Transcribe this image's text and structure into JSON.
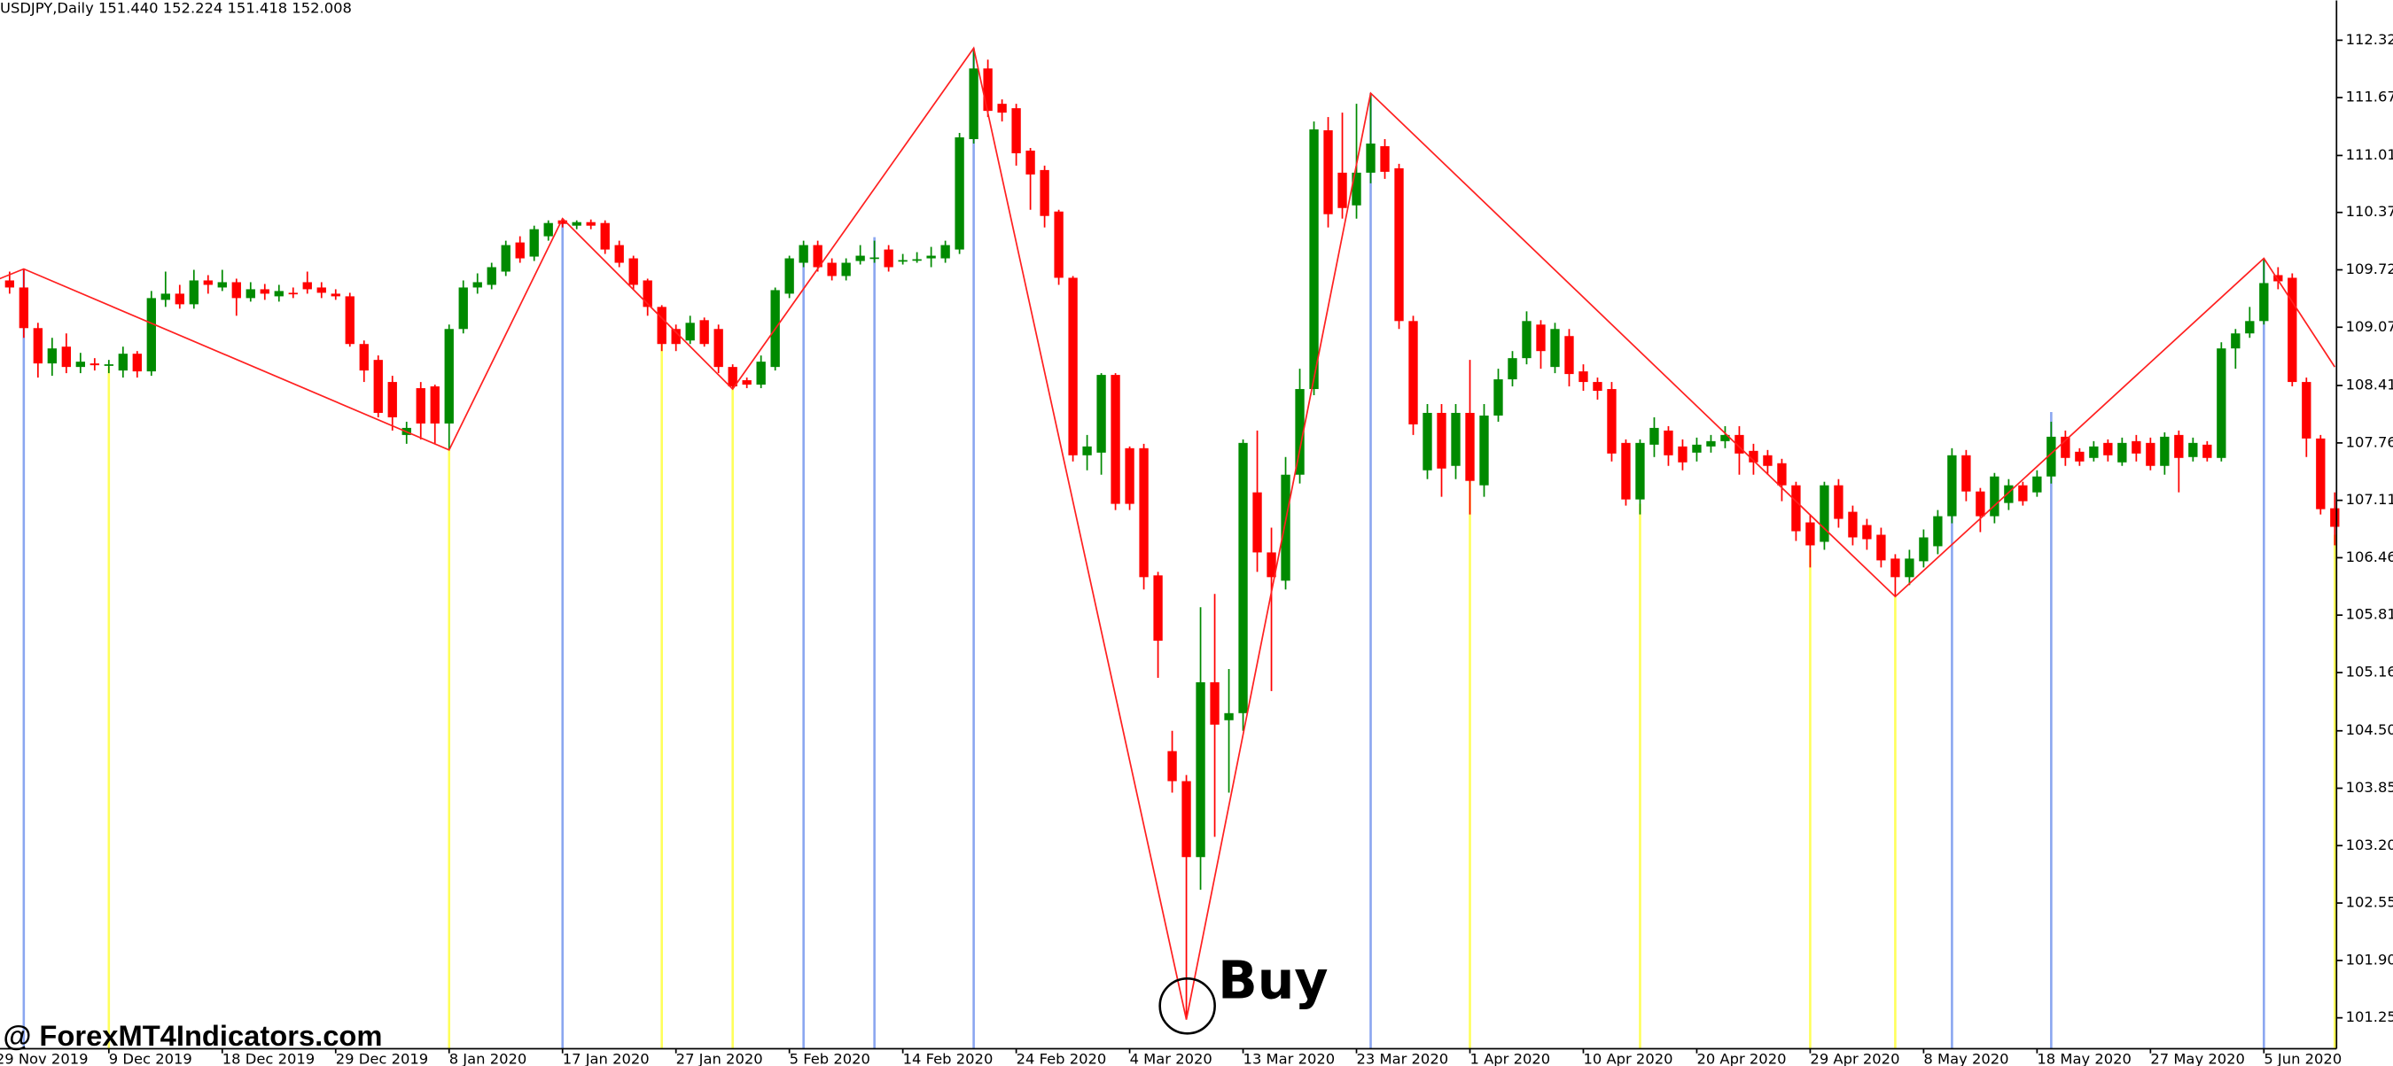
{
  "chart_data": {
    "type": "candlestick",
    "title": "USDJPY,Daily  151.440 152.224 151.418 152.008",
    "categories": [
      "29 Nov 2019",
      null,
      null,
      null,
      null,
      null,
      null,
      null,
      "9 Dec 2019",
      null,
      null,
      null,
      null,
      null,
      null,
      null,
      "18 Dec 2019",
      null,
      null,
      null,
      null,
      null,
      null,
      null,
      "29 Dec 2019",
      null,
      null,
      null,
      null,
      null,
      null,
      null,
      "8 Jan 2020",
      null,
      null,
      null,
      null,
      null,
      null,
      null,
      "17 Jan 2020",
      null,
      null,
      null,
      null,
      null,
      null,
      null,
      "27 Jan 2020",
      null,
      null,
      null,
      null,
      null,
      null,
      null,
      "5 Feb 2020",
      null,
      null,
      null,
      null,
      null,
      null,
      null,
      "14 Feb 2020",
      null,
      null,
      null,
      null,
      null,
      null,
      null,
      "24 Feb 2020",
      null,
      null,
      null,
      null,
      null,
      null,
      null,
      "4 Mar 2020",
      null,
      null,
      null,
      null,
      null,
      null,
      null,
      "13 Mar 2020",
      null,
      null,
      null,
      null,
      null,
      null,
      null,
      "23 Mar 2020",
      null,
      null,
      null,
      null,
      null,
      null,
      null,
      "1 Apr 2020",
      null,
      null,
      null,
      null,
      null,
      null,
      null,
      "10 Apr 2020",
      null,
      null,
      null,
      null,
      null,
      null,
      null,
      "20 Apr 2020",
      null,
      null,
      null,
      null,
      null,
      null,
      null,
      "29 Apr 2020",
      null,
      null,
      null,
      null,
      null,
      null,
      null,
      "8 May 2020",
      null,
      null,
      null,
      null,
      null,
      null,
      null,
      "18 May 2020",
      null,
      null,
      null,
      null,
      null,
      null,
      null,
      "27 May 2020",
      null,
      null,
      null,
      null,
      null,
      null,
      null,
      "5 Jun 2020",
      null,
      null,
      null,
      null,
      null
    ],
    "open": [
      109.55,
      109.6,
      109.52,
      109.06,
      108.66,
      108.85,
      108.62,
      108.66,
      108.64,
      108.58,
      108.77,
      108.57,
      109.38,
      109.45,
      109.33,
      109.6,
      109.52,
      109.58,
      109.4,
      109.5,
      109.42,
      109.46,
      109.58,
      109.52,
      109.45,
      109.42,
      108.88,
      108.7,
      108.45,
      107.85,
      108.38,
      108.4,
      107.98,
      109.05,
      109.52,
      109.55,
      109.7,
      110.03,
      109.87,
      110.1,
      110.28,
      110.22,
      110.26,
      110.25,
      110.0,
      109.85,
      109.6,
      109.3,
      109.05,
      108.92,
      109.15,
      109.05,
      108.62,
      108.47,
      108.42,
      108.62,
      109.45,
      109.8,
      110.0,
      109.8,
      109.65,
      109.82,
      109.85,
      109.95,
      109.82,
      109.83,
      109.85,
      109.85,
      109.95,
      111.2,
      112.0,
      111.6,
      111.55,
      111.07,
      110.85,
      110.38,
      109.63,
      107.62,
      107.65,
      108.53,
      107.7,
      107.7,
      106.26,
      104.27,
      103.93,
      103.07,
      105.05,
      104.62,
      104.7,
      107.2,
      106.52,
      106.2,
      107.4,
      108.37,
      111.3,
      110.82,
      110.45,
      110.82,
      111.12,
      110.87,
      109.14,
      107.45,
      108.1,
      107.5,
      108.1,
      107.28,
      108.07,
      108.48,
      108.72,
      109.1,
      108.62,
      108.97,
      108.57,
      108.45,
      108.37,
      107.76,
      107.12,
      107.74,
      107.9,
      107.72,
      107.65,
      107.72,
      107.78,
      107.85,
      107.67,
      107.62,
      107.53,
      107.28,
      106.86,
      106.64,
      107.28,
      106.98,
      106.83,
      106.72,
      106.45,
      106.24,
      106.42,
      106.59,
      106.93,
      107.62,
      107.21,
      106.93,
      107.08,
      107.28,
      107.2,
      107.38,
      107.83,
      107.66,
      107.59,
      107.76,
      107.54,
      107.78,
      107.76,
      107.5,
      107.85,
      107.6,
      107.74,
      107.59,
      108.83,
      109.0,
      109.14,
      109.66,
      109.63,
      108.45,
      107.81,
      107.02
    ],
    "high": [
      109.65,
      109.7,
      109.73,
      109.12,
      108.95,
      109.0,
      108.78,
      108.72,
      108.7,
      108.85,
      108.8,
      109.48,
      109.7,
      109.55,
      109.72,
      109.66,
      109.72,
      109.62,
      109.58,
      109.56,
      109.55,
      109.52,
      109.7,
      109.58,
      109.5,
      109.46,
      108.92,
      108.75,
      108.52,
      108.0,
      108.45,
      108.42,
      109.1,
      109.6,
      109.68,
      109.8,
      110.05,
      110.1,
      110.22,
      110.28,
      110.3,
      110.28,
      110.29,
      110.28,
      110.05,
      109.88,
      109.62,
      109.32,
      109.1,
      109.2,
      109.18,
      109.1,
      108.65,
      108.5,
      108.75,
      109.52,
      109.88,
      110.05,
      110.05,
      109.85,
      109.85,
      110.0,
      110.05,
      110.0,
      109.9,
      109.92,
      109.98,
      110.05,
      111.27,
      112.23,
      112.1,
      111.65,
      111.6,
      111.1,
      110.9,
      110.4,
      109.65,
      107.85,
      108.55,
      108.55,
      107.72,
      107.75,
      106.3,
      104.5,
      104.0,
      105.9,
      106.05,
      105.2,
      107.8,
      107.9,
      106.8,
      107.6,
      108.6,
      111.4,
      111.45,
      111.5,
      111.6,
      111.72,
      111.2,
      110.92,
      109.2,
      108.2,
      108.2,
      108.2,
      108.7,
      108.2,
      108.6,
      108.8,
      109.25,
      109.15,
      109.12,
      109.05,
      108.65,
      108.5,
      108.45,
      107.8,
      107.8,
      108.05,
      107.95,
      107.8,
      107.82,
      107.85,
      107.95,
      107.95,
      107.75,
      107.68,
      107.58,
      107.32,
      106.95,
      107.32,
      107.35,
      107.05,
      106.9,
      106.8,
      106.5,
      106.55,
      106.78,
      107.0,
      107.7,
      107.68,
      107.25,
      107.42,
      107.35,
      107.32,
      107.45,
      108.0,
      107.9,
      107.7,
      107.78,
      107.8,
      107.82,
      107.85,
      107.82,
      107.88,
      107.9,
      107.82,
      107.78,
      108.9,
      109.05,
      109.3,
      109.85,
      109.75,
      109.68,
      108.5,
      107.85,
      107.2
    ],
    "low": [
      109.45,
      109.45,
      108.95,
      108.5,
      108.52,
      108.55,
      108.55,
      108.58,
      108.55,
      108.5,
      108.5,
      108.52,
      109.3,
      109.28,
      109.28,
      109.45,
      109.48,
      109.2,
      109.36,
      109.38,
      109.36,
      109.4,
      109.45,
      109.4,
      109.38,
      108.85,
      108.45,
      108.05,
      107.9,
      107.75,
      107.8,
      107.75,
      107.68,
      109.0,
      109.45,
      109.5,
      109.65,
      109.8,
      109.82,
      110.05,
      110.2,
      110.18,
      110.18,
      109.9,
      109.75,
      109.5,
      109.2,
      108.8,
      108.8,
      108.88,
      108.85,
      108.55,
      108.37,
      108.38,
      108.38,
      108.58,
      109.4,
      109.75,
      109.7,
      109.6,
      109.6,
      109.78,
      109.8,
      109.7,
      109.78,
      109.8,
      109.75,
      109.8,
      109.9,
      111.15,
      111.45,
      111.4,
      110.9,
      110.4,
      110.2,
      109.55,
      107.55,
      107.45,
      107.4,
      107.0,
      107.0,
      106.1,
      105.1,
      103.8,
      101.23,
      102.7,
      103.3,
      103.8,
      104.5,
      106.3,
      104.95,
      106.1,
      107.3,
      108.3,
      110.2,
      110.3,
      110.3,
      110.7,
      110.75,
      109.05,
      107.85,
      107.35,
      107.15,
      107.35,
      106.95,
      107.15,
      108.0,
      108.4,
      108.65,
      108.6,
      108.55,
      108.4,
      108.35,
      108.25,
      107.55,
      107.05,
      106.95,
      107.6,
      107.5,
      107.45,
      107.55,
      107.65,
      107.7,
      107.4,
      107.4,
      107.4,
      107.1,
      106.65,
      106.35,
      106.55,
      106.8,
      106.6,
      106.55,
      106.35,
      106.02,
      106.15,
      106.35,
      106.5,
      106.85,
      107.1,
      106.75,
      106.85,
      107.0,
      107.05,
      107.15,
      107.3,
      107.5,
      107.5,
      107.55,
      107.55,
      107.5,
      107.55,
      107.45,
      107.4,
      107.2,
      107.55,
      107.55,
      107.55,
      108.6,
      108.95,
      109.1,
      109.5,
      108.4,
      107.6,
      106.95,
      106.6
    ],
    "close": [
      109.6,
      109.52,
      109.06,
      108.66,
      108.83,
      108.62,
      108.68,
      108.64,
      108.65,
      108.77,
      108.57,
      109.4,
      109.45,
      109.33,
      109.6,
      109.55,
      109.58,
      109.4,
      109.5,
      109.45,
      109.48,
      109.45,
      109.5,
      109.46,
      109.42,
      108.88,
      108.58,
      108.1,
      108.05,
      107.93,
      107.98,
      107.98,
      109.05,
      109.52,
      109.58,
      109.75,
      110.0,
      109.85,
      110.18,
      110.25,
      110.24,
      110.26,
      110.22,
      109.95,
      109.8,
      109.55,
      109.3,
      108.88,
      108.88,
      109.12,
      108.88,
      108.62,
      108.4,
      108.42,
      108.68,
      109.49,
      109.85,
      110.0,
      109.75,
      109.65,
      109.8,
      109.88,
      109.86,
      109.75,
      109.83,
      109.84,
      109.88,
      110.0,
      111.22,
      112.0,
      111.52,
      111.5,
      111.04,
      110.8,
      110.33,
      109.63,
      107.62,
      107.72,
      108.53,
      107.07,
      107.07,
      106.24,
      105.52,
      103.93,
      103.07,
      105.05,
      104.57,
      104.7,
      107.76,
      106.52,
      106.24,
      107.4,
      108.37,
      111.31,
      110.35,
      110.42,
      110.82,
      111.15,
      110.83,
      109.14,
      107.97,
      108.1,
      107.47,
      108.1,
      107.33,
      108.07,
      108.48,
      108.72,
      109.14,
      108.8,
      109.05,
      108.54,
      108.45,
      108.35,
      107.64,
      107.12,
      107.76,
      107.93,
      107.62,
      107.54,
      107.74,
      107.78,
      107.85,
      107.64,
      107.54,
      107.5,
      107.28,
      106.76,
      106.6,
      107.28,
      106.9,
      106.69,
      106.67,
      106.43,
      106.24,
      106.45,
      106.69,
      106.93,
      107.62,
      107.21,
      106.93,
      107.38,
      107.28,
      107.1,
      107.38,
      107.83,
      107.59,
      107.55,
      107.72,
      107.62,
      107.76,
      107.64,
      107.5,
      107.83,
      107.59,
      107.76,
      107.59,
      108.83,
      109.0,
      109.14,
      109.57,
      109.59,
      108.45,
      107.81,
      107.01,
      106.81
    ],
    "up_color": "#008a00",
    "down_color": "#ff0000",
    "ylim": [
      100.9,
      112.77
    ],
    "yticks": [
      {
        "value": 112.32,
        "label": "112.320"
      },
      {
        "value": 111.67,
        "label": "111.670"
      },
      {
        "value": 111.015,
        "label": "111.015"
      },
      {
        "value": 110.37,
        "label": "110.370"
      },
      {
        "value": 109.72,
        "label": "109.720"
      },
      {
        "value": 109.07,
        "label": "109.070"
      },
      {
        "value": 108.41,
        "label": "108.410"
      },
      {
        "value": 107.76,
        "label": "107.760"
      },
      {
        "value": 107.11,
        "label": "107.110"
      },
      {
        "value": 106.46,
        "label": "106.460"
      },
      {
        "value": 105.81,
        "label": "105.810"
      },
      {
        "value": 105.16,
        "label": "105.160"
      },
      {
        "value": 104.5,
        "label": "104.500"
      },
      {
        "value": 103.85,
        "label": "103.850"
      },
      {
        "value": 103.2,
        "label": "103.200"
      },
      {
        "value": 102.55,
        "label": "102.550"
      },
      {
        "value": 101.9,
        "label": "101.900"
      },
      {
        "value": 101.25,
        "label": "101.250"
      }
    ],
    "zigzag": {
      "color": "#ff2020",
      "x": [
        0,
        2,
        32,
        40,
        52,
        69,
        84,
        97,
        134,
        160,
        165
      ],
      "y": [
        109.6,
        109.73,
        107.68,
        110.3,
        108.37,
        112.23,
        101.23,
        111.72,
        106.02,
        109.85,
        108.62
      ]
    },
    "signals": [
      {
        "x": 2,
        "top": 109.73,
        "color": "#8aa6f0"
      },
      {
        "x": 40,
        "top": 110.3,
        "color": "#8aa6f0"
      },
      {
        "x": 57,
        "top": 109.83,
        "color": "#8aa6f0"
      },
      {
        "x": 62,
        "top": 110.09,
        "color": "#8aa6f0"
      },
      {
        "x": 69,
        "top": 112.23,
        "color": "#8aa6f0"
      },
      {
        "x": 97,
        "top": 111.72,
        "color": "#8aa6f0"
      },
      {
        "x": 138,
        "top": 107.59,
        "color": "#8aa6f0"
      },
      {
        "x": 145,
        "top": 108.11,
        "color": "#8aa6f0"
      },
      {
        "x": 160,
        "top": 109.85,
        "color": "#8aa6f0"
      },
      {
        "x": 8,
        "top": 108.62,
        "color": "#ffff5a"
      },
      {
        "x": 32,
        "top": 107.68,
        "color": "#ffff5a"
      },
      {
        "x": 47,
        "top": 108.88,
        "color": "#ffff5a"
      },
      {
        "x": 52,
        "top": 108.37,
        "color": "#ffff5a"
      },
      {
        "x": 104,
        "top": 107.33,
        "color": "#ffff5a"
      },
      {
        "x": 116,
        "top": 107.07,
        "color": "#ffff5a"
      },
      {
        "x": 128,
        "top": 106.55,
        "color": "#ffff5a"
      },
      {
        "x": 134,
        "top": 106.02,
        "color": "#ffff5a"
      },
      {
        "x": 165,
        "top": 106.72,
        "color": "#ffff5a"
      }
    ],
    "annotation": "Buy",
    "watermark": "@ ForexMT4Indicators.com"
  }
}
